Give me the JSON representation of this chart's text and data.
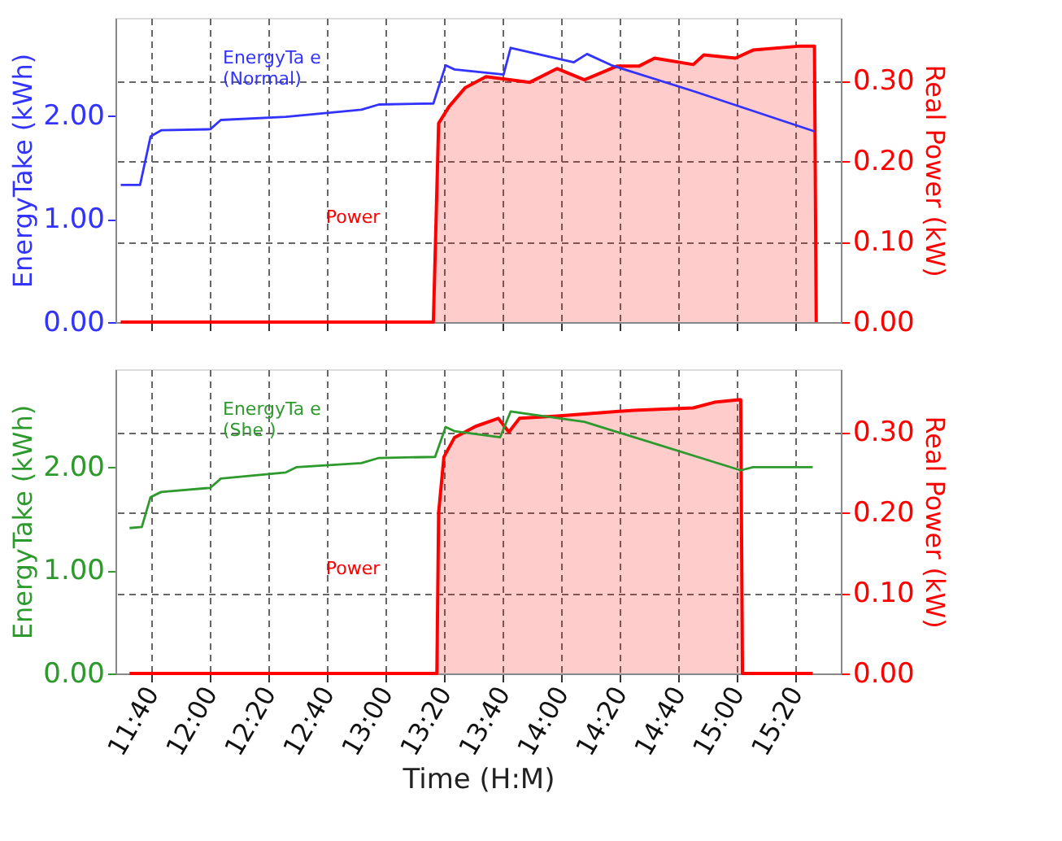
{
  "chart_data": [
    {
      "type": "line",
      "ylabel": "EnergyTake (kWh)",
      "y2label": "Real Power (kW)",
      "xlim": [
        11.46,
        15.59
      ],
      "ylim": [
        0,
        2.95
      ],
      "y2lim": [
        0,
        0.378
      ],
      "xticks": [
        {
          "value": 11.6667,
          "label": null
        },
        {
          "value": 12,
          "label": null
        },
        {
          "value": 12.3333,
          "label": null
        },
        {
          "value": 12.6667,
          "label": null
        },
        {
          "value": 13,
          "label": null
        },
        {
          "value": 13.3333,
          "label": null
        },
        {
          "value": 13.6667,
          "label": null
        },
        {
          "value": 14,
          "label": null
        },
        {
          "value": 14.3333,
          "label": null
        },
        {
          "value": 14.6667,
          "label": null
        },
        {
          "value": 15,
          "label": null
        },
        {
          "value": 15.3333,
          "label": null
        }
      ],
      "yticks": [
        {
          "value": 0,
          "label": "0.00"
        },
        {
          "value": 1,
          "label": "1.00"
        },
        {
          "value": 2,
          "label": "2.00"
        }
      ],
      "y2ticks": [
        {
          "value": 0,
          "label": "0.00"
        },
        {
          "value": 0.1,
          "label": "0.10"
        },
        {
          "value": 0.2,
          "label": "0.20"
        },
        {
          "value": 0.3,
          "label": "0.30"
        }
      ],
      "grid": true,
      "tick_labels": "y",
      "annotations": [
        "EnergyTa e\n(Normal)",
        "Power"
      ],
      "series": [
        {
          "color": "#3333ff",
          "x": [
            11.49,
            11.6,
            11.66,
            11.72,
            12.0,
            12.06,
            12.43,
            12.86,
            12.96,
            13.27,
            13.34,
            13.39,
            13.67,
            13.71,
            14.07,
            14.145,
            14.285,
            14.75,
            15.44
          ],
          "values": [
            1.33,
            1.33,
            1.8,
            1.86,
            1.87,
            1.96,
            1.99,
            2.06,
            2.11,
            2.12,
            2.49,
            2.45,
            2.4,
            2.66,
            2.52,
            2.6,
            2.49,
            2.24,
            1.85
          ]
        },
        {
          "type": "area",
          "axis": "y2",
          "color": "#ff0000",
          "x": [
            11.49,
            13.27,
            13.3,
            13.36,
            13.45,
            13.57,
            13.82,
            13.975,
            14.13,
            14.315,
            14.44,
            14.53,
            14.75,
            14.81,
            14.99,
            15.09,
            15.36,
            15.44,
            15.45
          ],
          "values": [
            0,
            0,
            0.247,
            0.268,
            0.291,
            0.305,
            0.298,
            0.315,
            0.301,
            0.318,
            0.318,
            0.328,
            0.32,
            0.332,
            0.328,
            0.338,
            0.343,
            0.343,
            0
          ]
        }
      ]
    },
    {
      "type": "line",
      "xlabel": "Time (H:M)",
      "ylabel": "EnergyTake (kWh)",
      "y2label": "Real Power (kW)",
      "xlim": [
        11.46,
        15.59
      ],
      "ylim": [
        0,
        2.95
      ],
      "y2lim": [
        0,
        0.378
      ],
      "xticks": [
        {
          "value": 11.6667,
          "label": "11:40"
        },
        {
          "value": 12,
          "label": "12:00"
        },
        {
          "value": 12.3333,
          "label": "12:20"
        },
        {
          "value": 12.6667,
          "label": "12:40"
        },
        {
          "value": 13,
          "label": "13:00"
        },
        {
          "value": 13.3333,
          "label": "13:20"
        },
        {
          "value": 13.6667,
          "label": "13:40"
        },
        {
          "value": 14,
          "label": "14:00"
        },
        {
          "value": 14.3333,
          "label": "14:20"
        },
        {
          "value": 14.6667,
          "label": "14:40"
        },
        {
          "value": 15,
          "label": "15:00"
        },
        {
          "value": 15.3333,
          "label": "15:20"
        }
      ],
      "yticks": [
        {
          "value": 0,
          "label": "0.00"
        },
        {
          "value": 1,
          "label": "1.00"
        },
        {
          "value": 2,
          "label": "2.00"
        }
      ],
      "y2ticks": [
        {
          "value": 0,
          "label": "0.00"
        },
        {
          "value": 0.1,
          "label": "0.10"
        },
        {
          "value": 0.2,
          "label": "0.20"
        },
        {
          "value": 0.3,
          "label": "0.30"
        }
      ],
      "grid": true,
      "annotations": [
        "EnergyTa e\n(She  )",
        "Power"
      ],
      "series": [
        {
          "color": "#2e9a2e",
          "x": [
            11.54,
            11.61,
            11.66,
            11.72,
            12.0,
            12.06,
            12.43,
            12.49,
            12.86,
            12.96,
            13.28,
            13.34,
            13.39,
            13.65,
            13.71,
            14.13,
            15.02,
            15.09,
            15.43
          ],
          "values": [
            1.41,
            1.42,
            1.71,
            1.76,
            1.8,
            1.89,
            1.95,
            2.0,
            2.04,
            2.09,
            2.1,
            2.39,
            2.35,
            2.29,
            2.54,
            2.44,
            1.97,
            2.0,
            2.0
          ]
        },
        {
          "type": "area",
          "axis": "y2",
          "color": "#ff0000",
          "x": [
            11.54,
            13.29,
            13.3,
            13.33,
            13.39,
            13.51,
            13.64,
            13.7,
            13.76,
            13.975,
            14.41,
            14.75,
            14.87,
            15.01,
            15.02,
            15.03,
            15.43
          ],
          "values": [
            0,
            0,
            0.2,
            0.269,
            0.293,
            0.307,
            0.317,
            0.3,
            0.317,
            0.32,
            0.327,
            0.33,
            0.337,
            0.34,
            0.34,
            0,
            0
          ]
        }
      ]
    }
  ]
}
